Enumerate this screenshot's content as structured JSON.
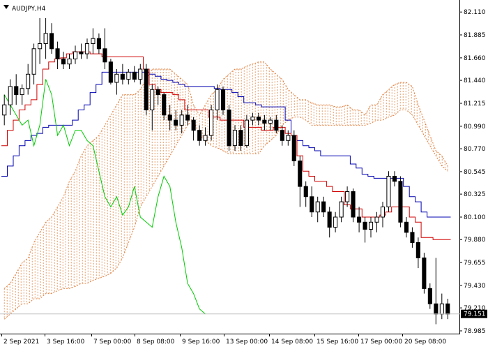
{
  "chart_data": {
    "type": "candlestick",
    "title": "AUDJPY,H4",
    "symbol_icon": "triangle-down-icon",
    "ylim": [
      78.985,
      82.2
    ],
    "y_ticks": [
      "82.110",
      "81.885",
      "81.660",
      "81.440",
      "81.215",
      "80.990",
      "80.770",
      "80.545",
      "80.325",
      "80.100",
      "79.880",
      "79.655",
      "79.430",
      "79.210",
      "78.985"
    ],
    "x_ticks": [
      "2 Sep 2021",
      "3 Sep 16:00",
      "7 Sep 00:00",
      "8 Sep 08:00",
      "9 Sep 16:00",
      "13 Sep 00:00",
      "14 Sep 08:00",
      "15 Sep 16:00",
      "17 Sep 00:00",
      "20 Sep 08:00"
    ],
    "current_price": "79.151",
    "colors": {
      "background": "#ffffff",
      "candle": "#000000",
      "tenkan": "#d00000",
      "kijun": "#0000b0",
      "chikou": "#00cc00",
      "cloud": "#e08040",
      "price_tag": "#000000"
    },
    "candles": [
      [
        81.1,
        81.3,
        81.0,
        81.2
      ],
      [
        81.2,
        81.45,
        81.1,
        81.38
      ],
      [
        81.38,
        81.5,
        81.2,
        81.3
      ],
      [
        81.3,
        81.4,
        81.2,
        81.36
      ],
      [
        81.36,
        81.6,
        81.3,
        81.5
      ],
      [
        81.5,
        81.8,
        81.4,
        81.75
      ],
      [
        81.75,
        82.05,
        81.6,
        81.8
      ],
      [
        81.8,
        82.05,
        81.65,
        81.9
      ],
      [
        81.9,
        82.0,
        81.7,
        81.75
      ],
      [
        81.75,
        81.82,
        81.55,
        81.65
      ],
      [
        81.65,
        81.72,
        81.55,
        81.6
      ],
      [
        81.6,
        81.7,
        81.55,
        81.65
      ],
      [
        81.65,
        81.78,
        81.6,
        81.72
      ],
      [
        81.72,
        81.8,
        81.65,
        81.7
      ],
      [
        81.7,
        81.85,
        81.65,
        81.8
      ],
      [
        81.8,
        81.95,
        81.7,
        81.85
      ],
      [
        81.85,
        81.9,
        81.7,
        81.75
      ],
      [
        81.75,
        81.95,
        81.55,
        81.62
      ],
      [
        81.62,
        81.65,
        81.4,
        81.42
      ],
      [
        81.42,
        81.55,
        81.3,
        81.5
      ],
      [
        81.5,
        81.6,
        81.4,
        81.45
      ],
      [
        81.45,
        81.55,
        81.4,
        81.52
      ],
      [
        81.52,
        81.58,
        81.42,
        81.45
      ],
      [
        81.45,
        81.6,
        81.4,
        81.55
      ],
      [
        81.55,
        81.6,
        81.1,
        81.15
      ],
      [
        81.15,
        81.4,
        80.95,
        81.35
      ],
      [
        81.35,
        81.38,
        81.2,
        81.3
      ],
      [
        81.3,
        81.32,
        81.05,
        81.1
      ],
      [
        81.1,
        81.2,
        80.95,
        81.05
      ],
      [
        81.05,
        81.15,
        80.95,
        81.0
      ],
      [
        81.0,
        81.15,
        80.92,
        81.1
      ],
      [
        81.1,
        81.2,
        81.0,
        81.05
      ],
      [
        81.05,
        81.08,
        80.85,
        80.95
      ],
      [
        80.95,
        81.0,
        80.8,
        80.85
      ],
      [
        80.85,
        80.98,
        80.8,
        80.9
      ],
      [
        80.9,
        81.2,
        80.85,
        81.15
      ],
      [
        81.15,
        81.4,
        81.05,
        81.35
      ],
      [
        81.35,
        81.38,
        81.1,
        81.15
      ],
      [
        81.15,
        81.2,
        80.75,
        80.8
      ],
      [
        80.8,
        81.0,
        80.75,
        80.95
      ],
      [
        80.95,
        81.0,
        80.75,
        80.8
      ],
      [
        80.8,
        81.1,
        80.78,
        81.05
      ],
      [
        81.05,
        81.12,
        81.0,
        81.08
      ],
      [
        81.08,
        81.12,
        81.0,
        81.05
      ],
      [
        81.05,
        81.1,
        80.95,
        81.02
      ],
      [
        81.02,
        81.08,
        80.95,
        81.05
      ],
      [
        81.05,
        81.1,
        80.92,
        80.95
      ],
      [
        80.95,
        81.0,
        80.8,
        80.85
      ],
      [
        80.85,
        80.95,
        80.8,
        80.9
      ],
      [
        80.9,
        80.95,
        80.6,
        80.65
      ],
      [
        80.65,
        80.7,
        80.2,
        80.4
      ],
      [
        80.4,
        80.45,
        80.2,
        80.3
      ],
      [
        80.3,
        80.4,
        80.1,
        80.15
      ],
      [
        80.15,
        80.3,
        80.05,
        80.25
      ],
      [
        80.25,
        80.3,
        80.1,
        80.15
      ],
      [
        80.15,
        80.2,
        79.9,
        80.0
      ],
      [
        80.0,
        80.15,
        79.95,
        80.1
      ],
      [
        80.1,
        80.3,
        80.05,
        80.25
      ],
      [
        80.25,
        80.4,
        80.2,
        80.35
      ],
      [
        80.35,
        80.38,
        80.05,
        80.1
      ],
      [
        80.1,
        80.2,
        79.95,
        80.05
      ],
      [
        80.05,
        80.1,
        79.85,
        79.98
      ],
      [
        79.98,
        80.1,
        79.9,
        80.05
      ],
      [
        80.05,
        80.15,
        79.95,
        80.1
      ],
      [
        80.1,
        80.25,
        80.0,
        80.2
      ],
      [
        80.2,
        80.55,
        80.15,
        80.5
      ],
      [
        80.5,
        80.55,
        80.4,
        80.45
      ],
      [
        80.45,
        80.5,
        80.0,
        80.05
      ],
      [
        80.05,
        80.1,
        79.9,
        79.95
      ],
      [
        79.95,
        80.0,
        79.8,
        79.85
      ],
      [
        79.85,
        79.9,
        79.6,
        79.7
      ],
      [
        79.7,
        79.75,
        79.35,
        79.4
      ],
      [
        79.4,
        79.45,
        79.2,
        79.25
      ],
      [
        79.25,
        79.7,
        79.05,
        79.15
      ],
      [
        79.15,
        79.35,
        79.1,
        79.25
      ],
      [
        79.25,
        79.3,
        79.1,
        79.15
      ]
    ],
    "tenkan": [
      80.8,
      80.95,
      81.05,
      81.15,
      81.2,
      81.25,
      81.4,
      81.55,
      81.62,
      81.65,
      81.66,
      81.7,
      81.72,
      81.72,
      81.72,
      81.7,
      81.7,
      81.67,
      81.67,
      81.67,
      81.67,
      81.67,
      81.67,
      81.67,
      81.55,
      81.4,
      81.35,
      81.32,
      81.32,
      81.3,
      81.25,
      81.15,
      81.15,
      81.15,
      81.15,
      81.08,
      81.08,
      81.05,
      81.05,
      81.05,
      81.05,
      80.98,
      80.98,
      80.98,
      80.95,
      80.95,
      80.98,
      80.98,
      80.92,
      80.9,
      80.7,
      80.55,
      80.5,
      80.45,
      80.45,
      80.4,
      80.35,
      80.35,
      80.22,
      80.18,
      80.18,
      80.1,
      80.1,
      80.1,
      80.12,
      80.15,
      80.2,
      80.2,
      80.2,
      80.1,
      80.05,
      79.9,
      79.9,
      79.88,
      79.88,
      79.88
    ],
    "kijun": [
      80.5,
      80.6,
      80.7,
      80.8,
      80.85,
      80.9,
      80.92,
      80.98,
      81.0,
      81.0,
      81.0,
      81.0,
      81.05,
      81.15,
      81.2,
      81.32,
      81.4,
      81.52,
      81.52,
      81.52,
      81.52,
      81.52,
      81.52,
      81.52,
      81.52,
      81.5,
      81.48,
      81.45,
      81.44,
      81.42,
      81.4,
      81.38,
      81.38,
      81.38,
      81.38,
      81.38,
      81.36,
      81.35,
      81.35,
      81.32,
      81.28,
      81.22,
      81.22,
      81.2,
      81.18,
      81.18,
      81.18,
      81.18,
      81.05,
      80.9,
      80.85,
      80.8,
      80.78,
      80.75,
      80.7,
      80.7,
      80.7,
      80.7,
      80.7,
      80.62,
      80.58,
      80.52,
      80.5,
      80.48,
      80.48,
      80.48,
      80.48,
      80.48,
      80.4,
      80.3,
      80.25,
      80.15,
      80.1,
      80.1,
      80.1,
      80.1
    ],
    "chikou": [
      81.3,
      81.2,
      81.1,
      81.0,
      81.05,
      80.8,
      81.0,
      81.45,
      81.3,
      80.9,
      81.0,
      80.8,
      80.95,
      80.95,
      80.85,
      80.8,
      80.55,
      80.3,
      80.2,
      80.3,
      80.12,
      80.2,
      80.4,
      80.1,
      80.05,
      80.0,
      80.3,
      80.5,
      80.4,
      80.05,
      79.8,
      79.45,
      79.35,
      79.2,
      79.15
    ],
    "chikou_start": 0,
    "cloud_upper": [
      79.4,
      79.45,
      79.55,
      79.65,
      79.7,
      79.85,
      79.95,
      80.05,
      80.1,
      80.2,
      80.3,
      80.45,
      80.55,
      80.7,
      80.8,
      80.85,
      80.9,
      81.0,
      81.1,
      81.2,
      81.3,
      81.3,
      81.3,
      81.35,
      81.45,
      81.55,
      81.55,
      81.55,
      81.55,
      81.5,
      81.45,
      81.4,
      81.2,
      81.1,
      81.2,
      81.3,
      81.35,
      81.45,
      81.5,
      81.55,
      81.55,
      81.58,
      81.6,
      81.62,
      81.62,
      81.55,
      81.5,
      81.45,
      81.35,
      81.3,
      81.25,
      81.25,
      81.22,
      81.2,
      81.2,
      81.2,
      81.18,
      81.18,
      81.2,
      81.15,
      81.15,
      81.1,
      81.2,
      81.2,
      81.3,
      81.35,
      81.4,
      81.42,
      81.42,
      81.38,
      81.2,
      81.05,
      80.9,
      80.75,
      80.7,
      80.6
    ],
    "cloud_lower": [
      79.1,
      79.15,
      79.2,
      79.25,
      79.25,
      79.3,
      79.3,
      79.35,
      79.35,
      79.38,
      79.4,
      79.4,
      79.42,
      79.45,
      79.45,
      79.48,
      79.5,
      79.52,
      79.55,
      79.6,
      79.7,
      79.85,
      80.0,
      80.2,
      80.3,
      80.4,
      80.5,
      80.6,
      80.7,
      80.8,
      80.9,
      81.0,
      81.05,
      80.9,
      80.85,
      80.8,
      80.78,
      80.75,
      80.72,
      80.72,
      80.72,
      80.72,
      80.72,
      80.72,
      80.8,
      80.85,
      80.9,
      81.0,
      81.05,
      81.08,
      81.08,
      81.05,
      81.0,
      81.0,
      81.0,
      81.0,
      81.0,
      81.0,
      81.0,
      81.0,
      81.0,
      81.0,
      81.02,
      81.05,
      81.05,
      81.08,
      81.1,
      81.15,
      81.15,
      81.1,
      81.0,
      80.9,
      80.8,
      80.7,
      80.6,
      80.55
    ]
  }
}
